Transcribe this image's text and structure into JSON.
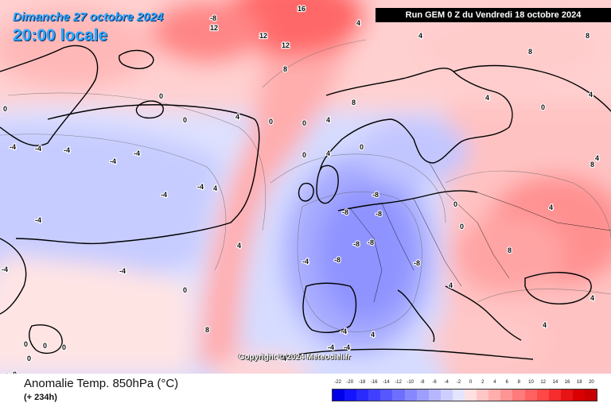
{
  "header": {
    "date": "Dimanche 27 octobre 2024",
    "time": "20:00 locale",
    "run": "Run GEM 0 Z du Vendredi 18 octobre 2024"
  },
  "copyright": "Copyright © 2024 Meteociel.fr",
  "legend": {
    "title": "Anomalie Temp. 850hPa (°C)",
    "subtitle": "(+ 234h)",
    "scale_values": [
      "-22",
      "-20",
      "-18",
      "-16",
      "-14",
      "-12",
      "-10",
      "-8",
      "-6",
      "-4",
      "-2",
      "0",
      "2",
      "4",
      "6",
      "8",
      "10",
      "12",
      "14",
      "16",
      "18",
      "20"
    ],
    "scale_colors": [
      "#0000e6",
      "#1414ff",
      "#2a2aff",
      "#4040ff",
      "#5757ff",
      "#6f6fff",
      "#8787ff",
      "#9e9eff",
      "#b6b6ff",
      "#cdcdff",
      "#e4e4ff",
      "#ffe0e0",
      "#ffc6c6",
      "#ffadad",
      "#ff9494",
      "#ff7a7a",
      "#ff6161",
      "#ff4848",
      "#f52d2d",
      "#e61414",
      "#d80000",
      "#c80000"
    ]
  },
  "map_labels": [
    "-8",
    "12",
    "12",
    "16",
    "12",
    "8",
    "4",
    "0",
    "0",
    "-4",
    "-4",
    "-4",
    "-4",
    "-4",
    "-4",
    "-4",
    "4",
    "4",
    "0",
    "-4",
    "-8",
    "-8",
    "-8",
    "-8",
    "-8",
    "-8",
    "-8",
    "-4",
    "-4",
    "4",
    "4",
    "8",
    "8",
    "8",
    "4",
    "0",
    "0",
    "-4",
    "-4",
    "0",
    "0",
    "-4",
    "4",
    "8",
    "0",
    "0",
    "4",
    "8",
    "4",
    "4",
    "4",
    "8",
    "0",
    "0",
    "0",
    "4",
    "4",
    "4",
    "0",
    "0",
    "-4",
    "-4",
    "0",
    "0",
    "0",
    "4"
  ],
  "colors": {
    "accent": "#2aa8ff",
    "run_bg": "#000000"
  }
}
